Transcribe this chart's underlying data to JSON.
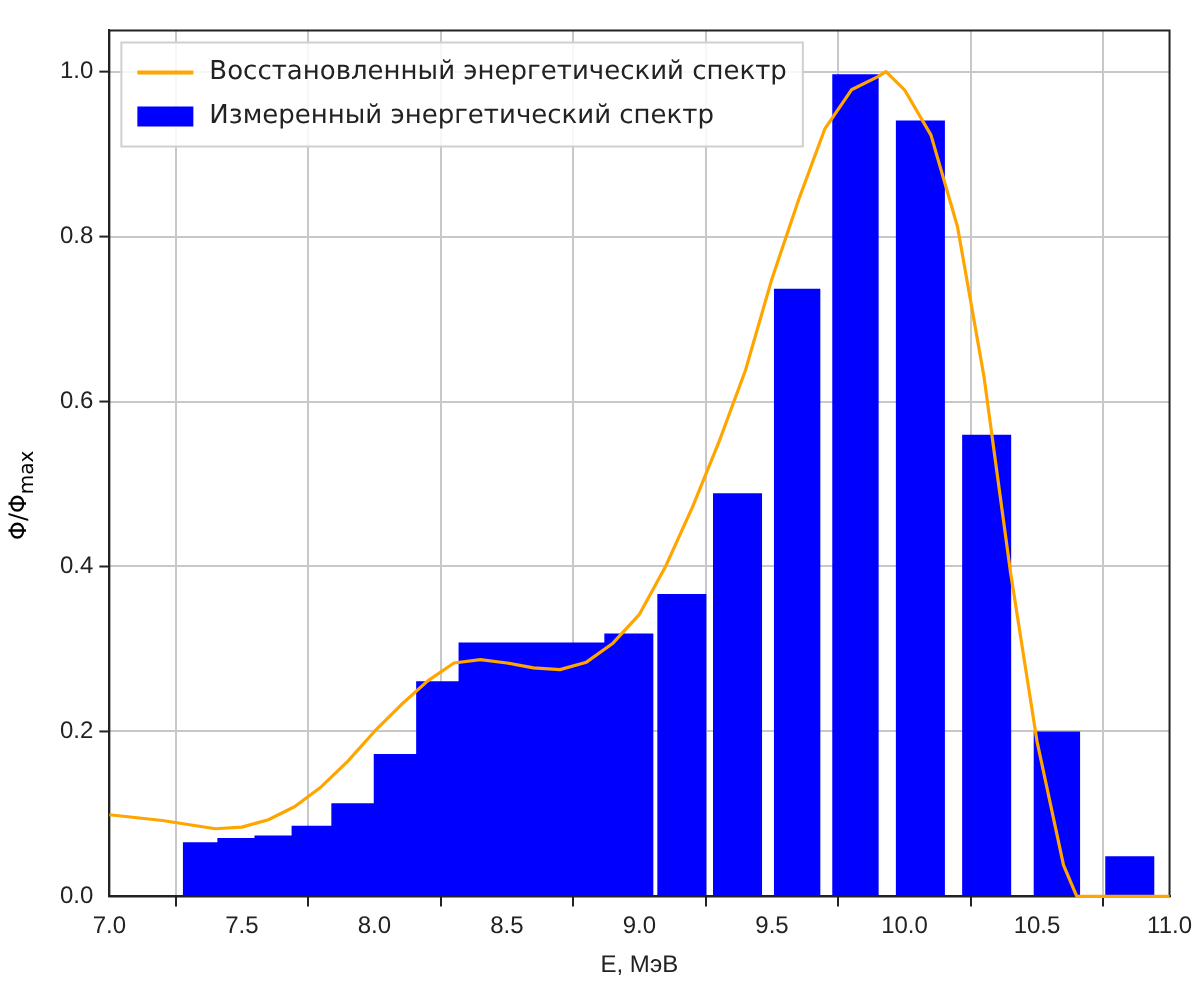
{
  "chart_data": {
    "type": "histogram",
    "xlabel": "E, МэВ",
    "ylabel": "Φ/Φ$_{max}$",
    "bins": [
      7.28,
      7.41,
      7.55,
      7.69,
      7.84,
      8.0,
      8.16,
      8.32,
      8.87,
      9.05,
      9.07,
      9.25,
      9.28,
      9.46,
      9.51,
      9.68,
      9.73,
      9.9,
      9.97,
      10.15,
      10.22,
      10.4,
      10.49,
      10.66,
      10.76,
      10.94
    ],
    "series": [
      {
        "name": "Восстановленный энергетический спектр",
        "type": "line",
        "color": "#ffa500",
        "x": [
          7.0,
          7.2,
          7.4,
          7.5,
          7.6,
          7.7,
          7.8,
          7.9,
          8.0,
          8.1,
          8.2,
          8.3,
          8.4,
          8.5,
          8.6,
          8.7,
          8.8,
          8.9,
          9.0,
          9.1,
          9.2,
          9.3,
          9.4,
          9.5,
          9.6,
          9.7,
          9.8,
          9.9,
          9.93,
          10.0,
          10.1,
          10.2,
          10.3,
          10.4,
          10.5,
          10.6,
          10.65,
          11.0
        ],
        "values": [
          0.099,
          0.092,
          0.082,
          0.084,
          0.093,
          0.109,
          0.133,
          0.164,
          0.2,
          0.232,
          0.261,
          0.283,
          0.287,
          0.283,
          0.277,
          0.275,
          0.284,
          0.307,
          0.342,
          0.401,
          0.472,
          0.551,
          0.638,
          0.749,
          0.844,
          0.931,
          0.978,
          0.994,
          1.0,
          0.978,
          0.923,
          0.812,
          0.63,
          0.393,
          0.188,
          0.038,
          0.0,
          0.0
        ]
      },
      {
        "name": "Измеренный энергетический спектр",
        "color": "#0000ff",
        "values": [
          0.065,
          0.07,
          0.073,
          0.085,
          0.112,
          0.172,
          0.26,
          0.307,
          0.318,
          null,
          0.366,
          null,
          0.488,
          null,
          0.736,
          null,
          0.996,
          null,
          0.94,
          null,
          0.559,
          null,
          0.199,
          null,
          0.048
        ]
      }
    ],
    "xlim": [
      7.0,
      11.0
    ],
    "ylim": [
      0,
      1.05
    ],
    "xticks": [
      {
        "value": 7,
        "label": "7.0"
      },
      7.5,
      {
        "value": 8,
        "label": "8.0"
      },
      8.5,
      {
        "value": 9,
        "label": "9.0"
      },
      9.5,
      {
        "value": 10,
        "label": "10.0"
      },
      10.5,
      {
        "value": 11,
        "label": "11.0"
      }
    ],
    "yticks": [
      {
        "value": 0,
        "label": "0.0"
      },
      0.2,
      0.4,
      0.6,
      0.8,
      {
        "value": 1,
        "label": "1.0"
      }
    ],
    "grid": true,
    "legend": "top left"
  }
}
